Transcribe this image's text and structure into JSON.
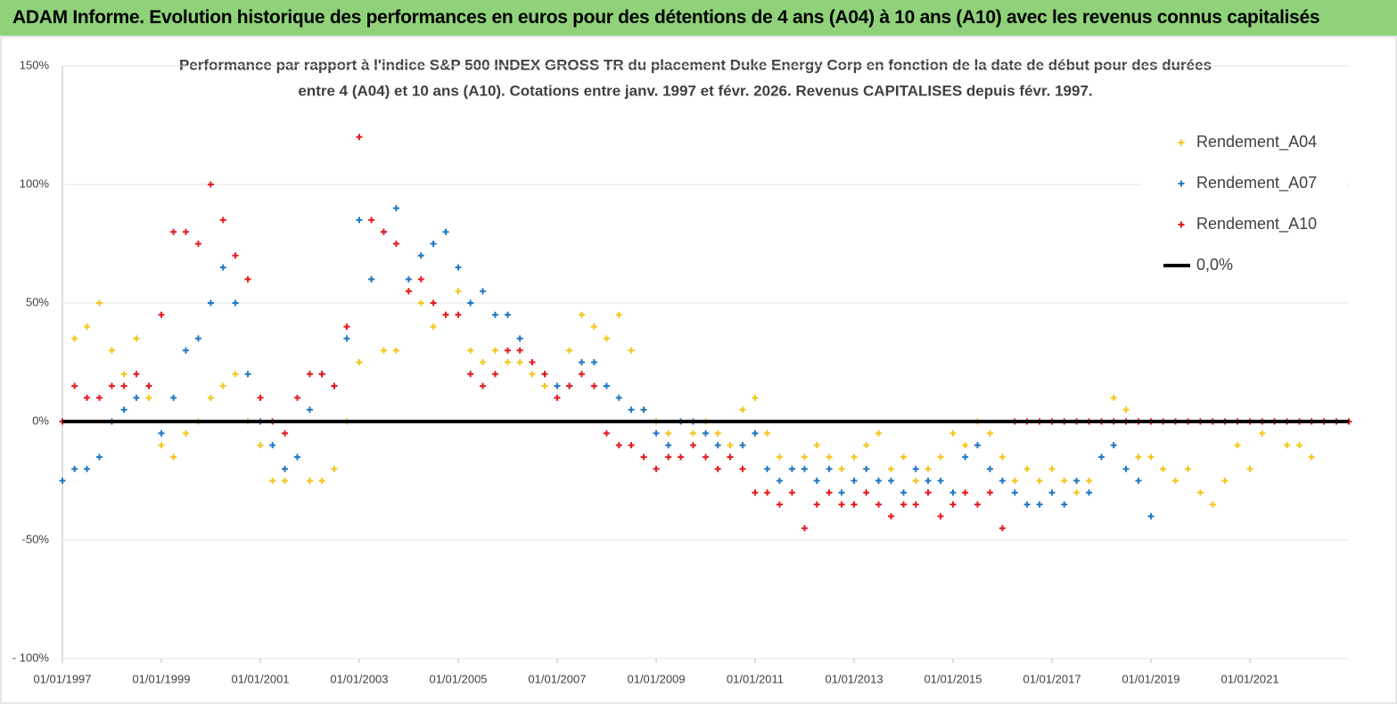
{
  "header": {
    "title": "ADAM Informe. Evolution historique des performances en euros pour des détentions de 4 ans (A04) à 10 ans (A10) avec les revenus connus capitalisés"
  },
  "chart_data": {
    "type": "scatter",
    "subtitle": [
      "Performance par rapport à l'indice S&P 500 INDEX GROSS TR  du placement Duke Energy Corp en fonction de la date de début pour des durées",
      "entre 4 (A04) et 10 ans (A10).  Cotations entre janv. 1997 et févr. 2026. Revenus CAPITALISES depuis févr. 1997."
    ],
    "xlim": [
      "1997-01-01",
      "2023-01-01"
    ],
    "xticks": [
      {
        "value": "1997-01-01",
        "label": "01/01/1997"
      },
      {
        "value": "1999-01-01",
        "label": "01/01/1999"
      },
      {
        "value": "2001-01-01",
        "label": "01/01/2001"
      },
      {
        "value": "2003-01-01",
        "label": "01/01/2003"
      },
      {
        "value": "2005-01-01",
        "label": "01/01/2005"
      },
      {
        "value": "2007-01-01",
        "label": "01/01/2007"
      },
      {
        "value": "2009-01-01",
        "label": "01/01/2009"
      },
      {
        "value": "2011-01-01",
        "label": "01/01/2011"
      },
      {
        "value": "2013-01-01",
        "label": "01/01/2013"
      },
      {
        "value": "2015-01-01",
        "label": "01/01/2015"
      },
      {
        "value": "2017-01-01",
        "label": "01/01/2017"
      },
      {
        "value": "2019-01-01",
        "label": "01/01/2019"
      },
      {
        "value": "2021-01-01",
        "label": "01/01/2021"
      }
    ],
    "ylim": [
      -100,
      150
    ],
    "yticks": [
      {
        "value": -100,
        "label": "- 100%"
      },
      {
        "value": -50,
        "label": "-50%"
      },
      {
        "value": 0,
        "label": "0%"
      },
      {
        "value": 50,
        "label": "50%"
      },
      {
        "value": 100,
        "label": "100%"
      },
      {
        "value": 150,
        "label": "150%"
      }
    ],
    "grid": true,
    "legend": "top-right",
    "series": [
      {
        "name": "Rendement_A04",
        "color": "#f5c518",
        "mode": "markers",
        "x": [
          "1997-01-01",
          "1997-04-01",
          "1997-07-01",
          "1997-10-01",
          "1998-01-01",
          "1998-04-01",
          "1998-07-01",
          "1998-10-01",
          "1999-01-01",
          "1999-04-01",
          "1999-07-01",
          "1999-10-01",
          "2000-01-01",
          "2000-04-01",
          "2000-07-01",
          "2000-10-01",
          "2001-01-01",
          "2001-04-01",
          "2001-07-01",
          "2001-10-01",
          "2002-01-01",
          "2002-04-01",
          "2002-07-01",
          "2002-10-01",
          "2003-01-01",
          "2003-04-01",
          "2003-07-01",
          "2003-10-01",
          "2004-01-01",
          "2004-04-01",
          "2004-07-01",
          "2004-10-01",
          "2005-01-01",
          "2005-04-01",
          "2005-07-01",
          "2005-10-01",
          "2006-01-01",
          "2006-04-01",
          "2006-07-01",
          "2006-10-01",
          "2007-01-01",
          "2007-04-01",
          "2007-07-01",
          "2007-10-01",
          "2008-01-01",
          "2008-04-01",
          "2008-07-01",
          "2008-10-01",
          "2009-01-01",
          "2009-04-01",
          "2009-07-01",
          "2009-10-01",
          "2010-01-01",
          "2010-04-01",
          "2010-07-01",
          "2010-10-01",
          "2011-01-01",
          "2011-04-01",
          "2011-07-01",
          "2011-10-01",
          "2012-01-01",
          "2012-04-01",
          "2012-07-01",
          "2012-10-01",
          "2013-01-01",
          "2013-04-01",
          "2013-07-01",
          "2013-10-01",
          "2014-01-01",
          "2014-04-01",
          "2014-07-01",
          "2014-10-01",
          "2015-01-01",
          "2015-04-01",
          "2015-07-01",
          "2015-10-01",
          "2016-01-01",
          "2016-04-01",
          "2016-07-01",
          "2016-10-01",
          "2017-01-01",
          "2017-04-01",
          "2017-07-01",
          "2017-10-01",
          "2018-01-01",
          "2018-04-01",
          "2018-07-01",
          "2018-10-01",
          "2019-01-01",
          "2019-04-01",
          "2019-07-01",
          "2019-10-01",
          "2020-01-01",
          "2020-04-01",
          "2020-07-01",
          "2020-10-01",
          "2021-01-01",
          "2021-04-01",
          "2021-07-01",
          "2021-10-01",
          "2022-01-01",
          "2022-04-01"
        ],
        "values": [
          0,
          35,
          40,
          50,
          30,
          20,
          35,
          10,
          -10,
          -15,
          -5,
          0,
          10,
          15,
          20,
          0,
          -10,
          -25,
          -25,
          -15,
          -25,
          -25,
          -20,
          0,
          25,
          60,
          30,
          30,
          55,
          50,
          40,
          45,
          55,
          30,
          25,
          30,
          25,
          25,
          20,
          15,
          15,
          30,
          45,
          40,
          35,
          45,
          30,
          5,
          0,
          -5,
          0,
          -5,
          0,
          -5,
          -10,
          5,
          10,
          -5,
          -15,
          -20,
          -15,
          -10,
          -15,
          -20,
          -15,
          -10,
          -5,
          -20,
          -15,
          -25,
          -20,
          -15,
          -5,
          -10,
          0,
          -5,
          -15,
          -25,
          -20,
          -25,
          -20,
          -25,
          -30,
          -25,
          0,
          10,
          5,
          -15,
          -15,
          -20,
          -25,
          -20,
          -30,
          -35,
          -25,
          -10,
          -20,
          -5,
          0,
          -10,
          -10,
          -15
        ]
      },
      {
        "name": "Rendement_A07",
        "color": "#1f77c4",
        "mode": "markers",
        "x": [
          "1997-01-01",
          "1997-04-01",
          "1997-07-01",
          "1997-10-01",
          "1998-01-01",
          "1998-04-01",
          "1998-07-01",
          "1998-10-01",
          "1999-01-01",
          "1999-04-01",
          "1999-07-01",
          "1999-10-01",
          "2000-01-01",
          "2000-04-01",
          "2000-07-01",
          "2000-10-01",
          "2001-01-01",
          "2001-04-01",
          "2001-07-01",
          "2001-10-01",
          "2002-01-01",
          "2002-04-01",
          "2002-07-01",
          "2002-10-01",
          "2003-01-01",
          "2003-04-01",
          "2003-07-01",
          "2003-10-01",
          "2004-01-01",
          "2004-04-01",
          "2004-07-01",
          "2004-10-01",
          "2005-01-01",
          "2005-04-01",
          "2005-07-01",
          "2005-10-01",
          "2006-01-01",
          "2006-04-01",
          "2006-07-01",
          "2006-10-01",
          "2007-01-01",
          "2007-04-01",
          "2007-07-01",
          "2007-10-01",
          "2008-01-01",
          "2008-04-01",
          "2008-07-01",
          "2008-10-01",
          "2009-01-01",
          "2009-04-01",
          "2009-07-01",
          "2009-10-01",
          "2010-01-01",
          "2010-04-01",
          "2010-07-01",
          "2010-10-01",
          "2011-01-01",
          "2011-04-01",
          "2011-07-01",
          "2011-10-01",
          "2012-01-01",
          "2012-04-01",
          "2012-07-01",
          "2012-10-01",
          "2013-01-01",
          "2013-04-01",
          "2013-07-01",
          "2013-10-01",
          "2014-01-01",
          "2014-04-01",
          "2014-07-01",
          "2014-10-01",
          "2015-01-01",
          "2015-04-01",
          "2015-07-01",
          "2015-10-01",
          "2016-01-01",
          "2016-04-01",
          "2016-07-01",
          "2016-10-01",
          "2017-01-01",
          "2017-04-01",
          "2017-07-01",
          "2017-10-01",
          "2018-01-01",
          "2018-04-01",
          "2018-07-01",
          "2018-10-01",
          "2019-01-01"
        ],
        "values": [
          -25,
          -20,
          -20,
          -15,
          0,
          5,
          10,
          15,
          -5,
          10,
          30,
          35,
          50,
          65,
          50,
          20,
          0,
          -10,
          -20,
          -15,
          5,
          20,
          15,
          35,
          85,
          60,
          80,
          90,
          60,
          70,
          75,
          80,
          65,
          50,
          55,
          45,
          45,
          35,
          25,
          20,
          15,
          15,
          25,
          25,
          15,
          10,
          5,
          5,
          -5,
          -10,
          0,
          0,
          -5,
          -10,
          -15,
          -10,
          -5,
          -20,
          -25,
          -20,
          -20,
          -25,
          -20,
          -30,
          -25,
          -20,
          -25,
          -25,
          -30,
          -20,
          -25,
          -25,
          -30,
          -15,
          -10,
          -20,
          -25,
          -30,
          -35,
          -35,
          -30,
          -35,
          -25,
          -30,
          -15,
          -10,
          -20,
          -25,
          -40
        ]
      },
      {
        "name": "Rendement_A10",
        "color": "#e8171c",
        "mode": "markers",
        "x": [
          "1997-01-01",
          "1997-04-01",
          "1997-07-01",
          "1997-10-01",
          "1998-01-01",
          "1998-04-01",
          "1998-07-01",
          "1998-10-01",
          "1999-01-01",
          "1999-04-01",
          "1999-07-01",
          "1999-10-01",
          "2000-01-01",
          "2000-04-01",
          "2000-07-01",
          "2000-10-01",
          "2001-01-01",
          "2001-04-01",
          "2001-07-01",
          "2001-10-01",
          "2002-01-01",
          "2002-04-01",
          "2002-07-01",
          "2002-10-01",
          "2003-01-01",
          "2003-04-01",
          "2003-07-01",
          "2003-10-01",
          "2004-01-01",
          "2004-04-01",
          "2004-07-01",
          "2004-10-01",
          "2005-01-01",
          "2005-04-01",
          "2005-07-01",
          "2005-10-01",
          "2006-01-01",
          "2006-04-01",
          "2006-07-01",
          "2006-10-01",
          "2007-01-01",
          "2007-04-01",
          "2007-07-01",
          "2007-10-01",
          "2008-01-01",
          "2008-04-01",
          "2008-07-01",
          "2008-10-01",
          "2009-01-01",
          "2009-04-01",
          "2009-07-01",
          "2009-10-01",
          "2010-01-01",
          "2010-04-01",
          "2010-07-01",
          "2010-10-01",
          "2011-01-01",
          "2011-04-01",
          "2011-07-01",
          "2011-10-01",
          "2012-01-01",
          "2012-04-01",
          "2012-07-01",
          "2012-10-01",
          "2013-01-01",
          "2013-04-01",
          "2013-07-01",
          "2013-10-01",
          "2014-01-01",
          "2014-04-01",
          "2014-07-01",
          "2014-10-01",
          "2015-01-01",
          "2015-04-01",
          "2015-07-01",
          "2015-10-01",
          "2016-01-01",
          "2016-04-01",
          "2016-07-01",
          "2016-10-01",
          "2017-01-01",
          "2017-04-01",
          "2017-07-01",
          "2017-10-01",
          "2018-01-01",
          "2018-04-01",
          "2018-07-01",
          "2018-10-01",
          "2019-01-01",
          "2019-04-01",
          "2019-07-01",
          "2019-10-01",
          "2020-01-01",
          "2020-04-01",
          "2020-07-01",
          "2020-10-01",
          "2021-01-01",
          "2021-04-01",
          "2021-07-01",
          "2021-10-01",
          "2022-01-01",
          "2022-04-01",
          "2022-07-01",
          "2022-10-01",
          "2023-01-01"
        ],
        "values": [
          0,
          15,
          10,
          10,
          15,
          15,
          20,
          15,
          45,
          80,
          80,
          75,
          100,
          85,
          70,
          60,
          10,
          0,
          -5,
          10,
          20,
          20,
          15,
          40,
          120,
          85,
          80,
          75,
          55,
          60,
          50,
          45,
          45,
          20,
          15,
          20,
          30,
          30,
          25,
          20,
          10,
          15,
          20,
          15,
          -5,
          -10,
          -10,
          -15,
          -20,
          -15,
          -15,
          -10,
          -15,
          -20,
          -15,
          -20,
          -30,
          -30,
          -35,
          -30,
          -45,
          -35,
          -30,
          -35,
          -35,
          -30,
          -35,
          -40,
          -35,
          -35,
          -30,
          -40,
          -35,
          -30,
          -35,
          -30,
          -45,
          0,
          0,
          0,
          0,
          0,
          0,
          0,
          0,
          0,
          0,
          0,
          0,
          0,
          0,
          0,
          0,
          0,
          0,
          0,
          0,
          0,
          0,
          0,
          0,
          0,
          0,
          0,
          0
        ]
      },
      {
        "name": "0,0%",
        "color": "#000000",
        "mode": "line",
        "x": [
          "1997-01-01",
          "2023-01-01"
        ],
        "values": [
          0,
          0
        ]
      }
    ]
  }
}
